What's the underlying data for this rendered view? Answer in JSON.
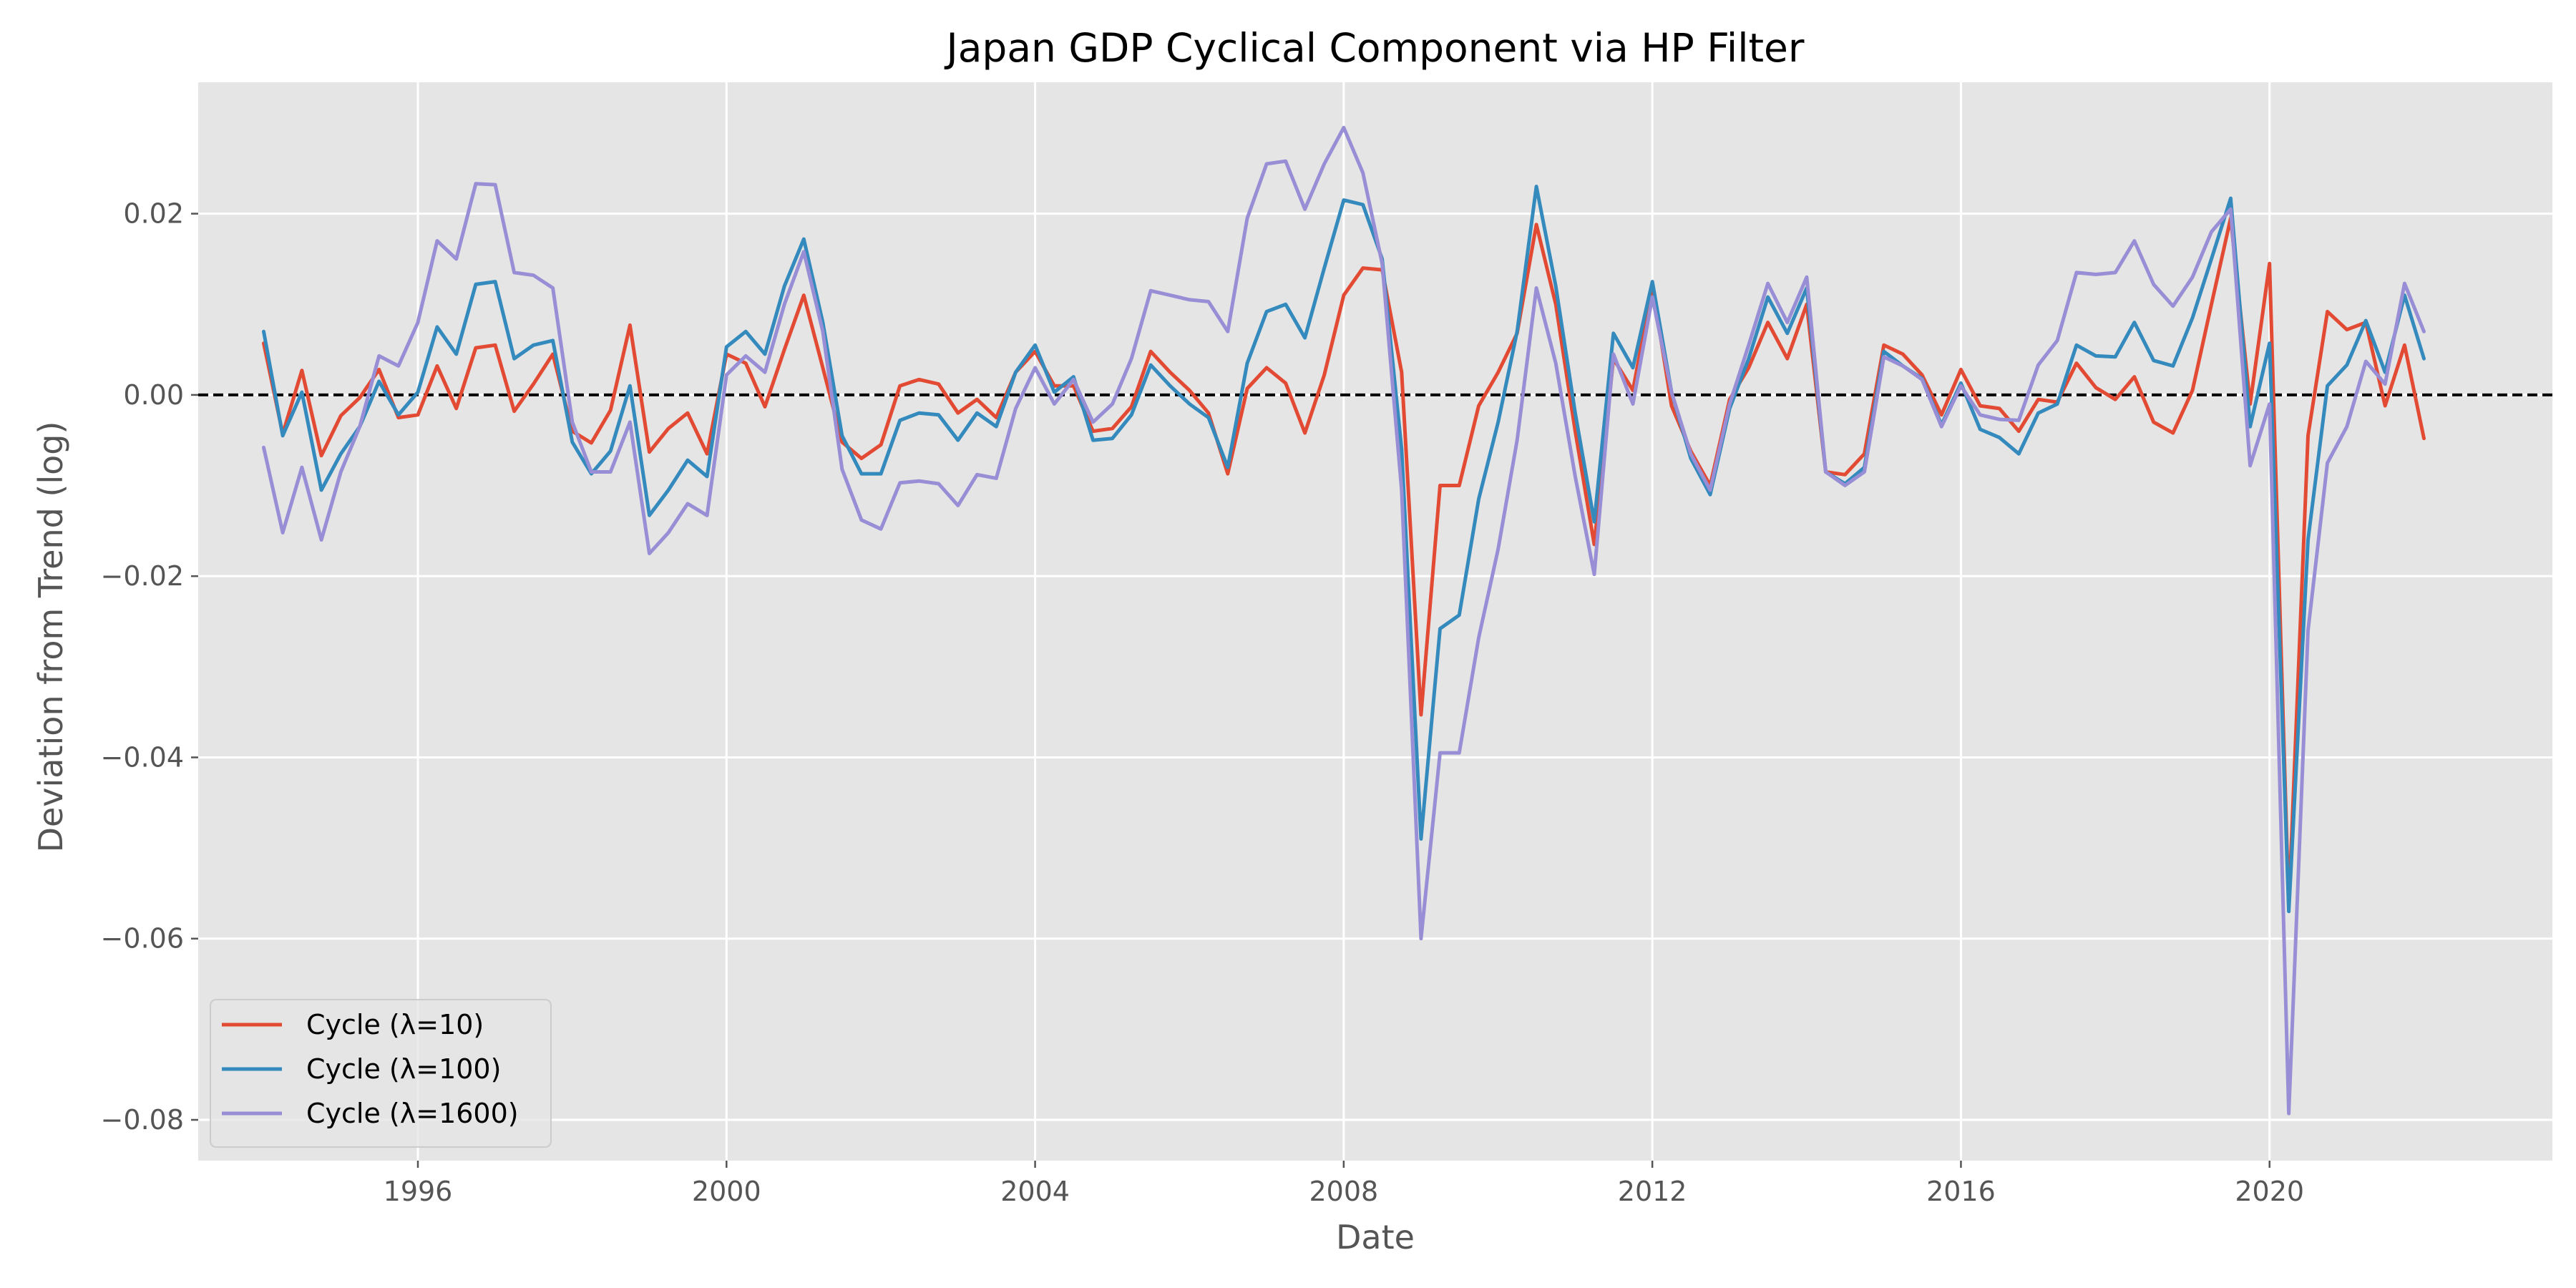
{
  "chart_data": {
    "type": "line",
    "title": "Japan GDP Cyclical Component via HP Filter",
    "xlabel": "Date",
    "ylabel": "Deviation from Trend (log)",
    "xlim": [
      "1993-02-25",
      "2023-09-01"
    ],
    "ylim": [
      -0.0845,
      0.0345
    ],
    "x_ticks": [
      {
        "date": "1996-01-01",
        "label": "1996"
      },
      {
        "date": "2000-01-01",
        "label": "2000"
      },
      {
        "date": "2004-01-01",
        "label": "2004"
      },
      {
        "date": "2008-01-01",
        "label": "2008"
      },
      {
        "date": "2012-01-01",
        "label": "2012"
      },
      {
        "date": "2016-01-01",
        "label": "2016"
      },
      {
        "date": "2020-01-01",
        "label": "2020"
      }
    ],
    "y_ticks": [
      {
        "value": 0.02,
        "label": "0.02"
      },
      {
        "value": 0.0,
        "label": "0.00"
      },
      {
        "value": -0.02,
        "label": "−0.02"
      },
      {
        "value": -0.04,
        "label": "−0.04"
      },
      {
        "value": -0.06,
        "label": "−0.06"
      },
      {
        "value": -0.08,
        "label": "−0.08"
      }
    ],
    "grid": true,
    "reference_line": {
      "y": 0.0,
      "style": "dashed",
      "color": "#000000"
    },
    "legend_position": "lower-left",
    "background": "#e5e5e5",
    "grid_color": "#ffffff",
    "x": [
      "1994-01-01",
      "1994-04-01",
      "1994-07-01",
      "1994-10-01",
      "1995-01-01",
      "1995-04-01",
      "1995-07-01",
      "1995-10-01",
      "1996-01-01",
      "1996-04-01",
      "1996-07-01",
      "1996-10-01",
      "1997-01-01",
      "1997-04-01",
      "1997-07-01",
      "1997-10-01",
      "1998-01-01",
      "1998-04-01",
      "1998-07-01",
      "1998-10-01",
      "1999-01-01",
      "1999-04-01",
      "1999-07-01",
      "1999-10-01",
      "2000-01-01",
      "2000-04-01",
      "2000-07-01",
      "2000-10-01",
      "2001-01-01",
      "2001-04-01",
      "2001-07-01",
      "2001-10-01",
      "2002-01-01",
      "2002-04-01",
      "2002-07-01",
      "2002-10-01",
      "2003-01-01",
      "2003-04-01",
      "2003-07-01",
      "2003-10-01",
      "2004-01-01",
      "2004-04-01",
      "2004-07-01",
      "2004-10-01",
      "2005-01-01",
      "2005-04-01",
      "2005-07-01",
      "2005-10-01",
      "2006-01-01",
      "2006-04-01",
      "2006-07-01",
      "2006-10-01",
      "2007-01-01",
      "2007-04-01",
      "2007-07-01",
      "2007-10-01",
      "2008-01-01",
      "2008-04-01",
      "2008-07-01",
      "2008-10-01",
      "2009-01-01",
      "2009-04-01",
      "2009-07-01",
      "2009-10-01",
      "2010-01-01",
      "2010-04-01",
      "2010-07-01",
      "2010-10-01",
      "2011-01-01",
      "2011-04-01",
      "2011-07-01",
      "2011-10-01",
      "2012-01-01",
      "2012-04-01",
      "2012-07-01",
      "2012-10-01",
      "2013-01-01",
      "2013-04-01",
      "2013-07-01",
      "2013-10-01",
      "2014-01-01",
      "2014-04-01",
      "2014-07-01",
      "2014-10-01",
      "2015-01-01",
      "2015-04-01",
      "2015-07-01",
      "2015-10-01",
      "2016-01-01",
      "2016-04-01",
      "2016-07-01",
      "2016-10-01",
      "2017-01-01",
      "2017-04-01",
      "2017-07-01",
      "2017-10-01",
      "2018-01-01",
      "2018-04-01",
      "2018-07-01",
      "2018-10-01",
      "2019-01-01",
      "2019-04-01",
      "2019-07-01",
      "2019-10-01",
      "2020-01-01",
      "2020-04-01",
      "2020-07-01",
      "2020-10-01",
      "2021-01-01",
      "2021-04-01",
      "2021-07-01",
      "2021-10-01",
      "2022-01-01"
    ],
    "series": [
      {
        "name": "Cycle (λ=10)",
        "color": "#e24a33",
        "values": [
          0.0057,
          -0.0043,
          0.0027,
          -0.0067,
          -0.0023,
          -0.0003,
          0.0028,
          -0.0025,
          -0.0022,
          0.0032,
          -0.0015,
          0.0052,
          0.0055,
          -0.0018,
          0.0012,
          0.0045,
          -0.004,
          -0.0053,
          -0.0017,
          0.0077,
          -0.0063,
          -0.0037,
          -0.002,
          -0.0065,
          0.0045,
          0.0035,
          -0.0013,
          0.005,
          0.011,
          0.003,
          -0.0052,
          -0.007,
          -0.0055,
          0.001,
          0.0017,
          0.0012,
          -0.002,
          -0.0005,
          -0.0025,
          0.0025,
          0.0048,
          0.001,
          0.001,
          -0.004,
          -0.0037,
          -0.0013,
          0.0048,
          0.0025,
          0.0005,
          -0.002,
          -0.0087,
          0.0007,
          0.003,
          0.0013,
          -0.0042,
          0.0022,
          0.011,
          0.014,
          0.0138,
          0.0025,
          -0.0353,
          -0.01,
          -0.01,
          -0.0012,
          0.0025,
          0.0068,
          0.0188,
          0.01,
          -0.004,
          -0.0165,
          0.004,
          0.0005,
          0.012,
          -0.0012,
          -0.0062,
          -0.01,
          -0.0005,
          0.003,
          0.008,
          0.004,
          0.01,
          -0.0085,
          -0.0088,
          -0.0065,
          0.0055,
          0.0045,
          0.0022,
          -0.0022,
          0.0028,
          -0.0012,
          -0.0015,
          -0.004,
          -0.0005,
          -0.0008,
          0.0035,
          0.0008,
          -0.0005,
          0.002,
          -0.003,
          -0.0042,
          0.0005,
          0.01,
          0.0195,
          -0.001,
          0.0145,
          -0.0565,
          -0.0045,
          0.0092,
          0.0072,
          0.008,
          -0.0012,
          0.0055,
          -0.0048
        ]
      },
      {
        "name": "Cycle (λ=100)",
        "color": "#348abd",
        "values": [
          0.007,
          -0.0045,
          0.0003,
          -0.0105,
          -0.0065,
          -0.0035,
          0.0015,
          -0.0022,
          0.0003,
          0.0075,
          0.0045,
          0.0122,
          0.0125,
          0.004,
          0.0055,
          0.006,
          -0.0052,
          -0.0087,
          -0.0062,
          0.001,
          -0.0133,
          -0.0105,
          -0.0072,
          -0.009,
          0.0053,
          0.007,
          0.0045,
          0.012,
          0.0172,
          0.008,
          -0.0045,
          -0.0087,
          -0.0087,
          -0.0028,
          -0.002,
          -0.0022,
          -0.005,
          -0.002,
          -0.0035,
          0.0025,
          0.0055,
          0.0003,
          0.002,
          -0.005,
          -0.0048,
          -0.0022,
          0.0033,
          0.001,
          -0.001,
          -0.0025,
          -0.008,
          0.0035,
          0.0092,
          0.01,
          0.0063,
          0.014,
          0.0215,
          0.021,
          0.015,
          -0.006,
          -0.049,
          -0.0258,
          -0.0243,
          -0.0115,
          -0.003,
          0.007,
          0.023,
          0.012,
          -0.002,
          -0.014,
          0.0068,
          0.003,
          0.0125,
          0.0003,
          -0.007,
          -0.011,
          -0.0015,
          0.004,
          0.0108,
          0.0068,
          0.0118,
          -0.0085,
          -0.0098,
          -0.008,
          0.0048,
          0.0032,
          0.0018,
          -0.0033,
          0.0013,
          -0.0038,
          -0.0047,
          -0.0065,
          -0.002,
          -0.001,
          0.0055,
          0.0043,
          0.0042,
          0.008,
          0.0038,
          0.0032,
          0.0085,
          0.015,
          0.0217,
          -0.0035,
          0.0057,
          -0.057,
          -0.016,
          0.001,
          0.0033,
          0.0082,
          0.0025,
          0.011,
          0.004
        ]
      },
      {
        "name": "Cycle (λ=1600)",
        "color": "#988ed5",
        "values": [
          -0.0058,
          -0.0152,
          -0.008,
          -0.016,
          -0.0085,
          -0.0035,
          0.0043,
          0.0032,
          0.008,
          0.017,
          0.015,
          0.0233,
          0.0232,
          0.0135,
          0.0132,
          0.0118,
          -0.003,
          -0.0085,
          -0.0085,
          -0.003,
          -0.0175,
          -0.0152,
          -0.012,
          -0.0133,
          0.0022,
          0.0043,
          0.0025,
          0.01,
          0.0158,
          0.007,
          -0.0082,
          -0.0138,
          -0.0148,
          -0.0097,
          -0.0095,
          -0.0098,
          -0.0122,
          -0.0088,
          -0.0092,
          -0.0015,
          0.003,
          -0.001,
          0.0017,
          -0.003,
          -0.001,
          0.004,
          0.0115,
          0.011,
          0.0105,
          0.0103,
          0.007,
          0.0195,
          0.0255,
          0.0258,
          0.0205,
          0.0255,
          0.0295,
          0.0245,
          0.0145,
          -0.0105,
          -0.06,
          -0.0395,
          -0.0395,
          -0.0268,
          -0.017,
          -0.005,
          0.0118,
          0.0035,
          -0.009,
          -0.0198,
          0.0045,
          -0.001,
          0.0108,
          0.0003,
          -0.0065,
          -0.0105,
          -0.001,
          0.0055,
          0.0123,
          0.008,
          0.013,
          -0.0085,
          -0.01,
          -0.0085,
          0.0042,
          0.0032,
          0.0017,
          -0.0035,
          0.001,
          -0.0022,
          -0.0027,
          -0.0028,
          0.0033,
          0.006,
          0.0135,
          0.0133,
          0.0135,
          0.017,
          0.0122,
          0.0098,
          0.013,
          0.018,
          0.0205,
          -0.0078,
          -0.001,
          -0.0793,
          -0.026,
          -0.0075,
          -0.0035,
          0.0037,
          0.0012,
          0.0123,
          0.007
        ]
      }
    ]
  }
}
